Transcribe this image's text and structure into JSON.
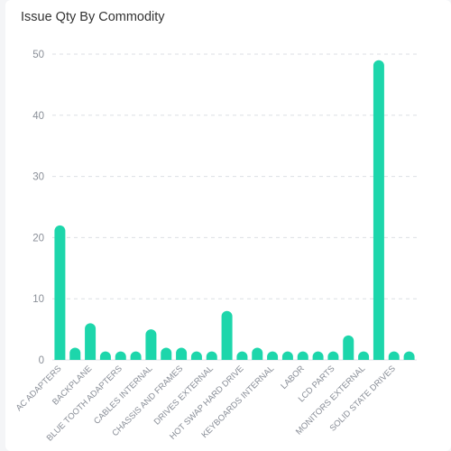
{
  "header": {
    "title": "Issue Qty By Commodity"
  },
  "colors": {
    "bar": "#1dd6ab",
    "grid": "#dcdfe4",
    "tick": "#8a8f98",
    "title": "#333333"
  },
  "chart_data": {
    "type": "bar",
    "title": "Issue Qty By Commodity",
    "xlabel": "",
    "ylabel": "",
    "ylim": [
      0,
      50
    ],
    "yticks": [
      0,
      10,
      20,
      30,
      40,
      50
    ],
    "grid": true,
    "legend": "none",
    "categories": [
      "AC ADAPTERS",
      "",
      "BACKPLANE",
      "",
      "BLUE TOOTH ADAPTERS",
      "",
      "CABLES INTERNAL",
      "",
      "CHASSIS AND FRAMES",
      "",
      "DRIVES EXTERNAL",
      "",
      "HOT SWAP HARD DRIVE",
      "",
      "KEYBOARDS INTERNAL",
      "",
      "LABOR",
      "",
      "LCD PARTS",
      "",
      "MONITORS EXTERNAL",
      "",
      "SOLID STATE DRIVES",
      ""
    ],
    "values": [
      22,
      2,
      6,
      1,
      1,
      1,
      5,
      2,
      2,
      1,
      1,
      8,
      1,
      2,
      1,
      1,
      1,
      1,
      1,
      4,
      1,
      49,
      1,
      1
    ]
  }
}
